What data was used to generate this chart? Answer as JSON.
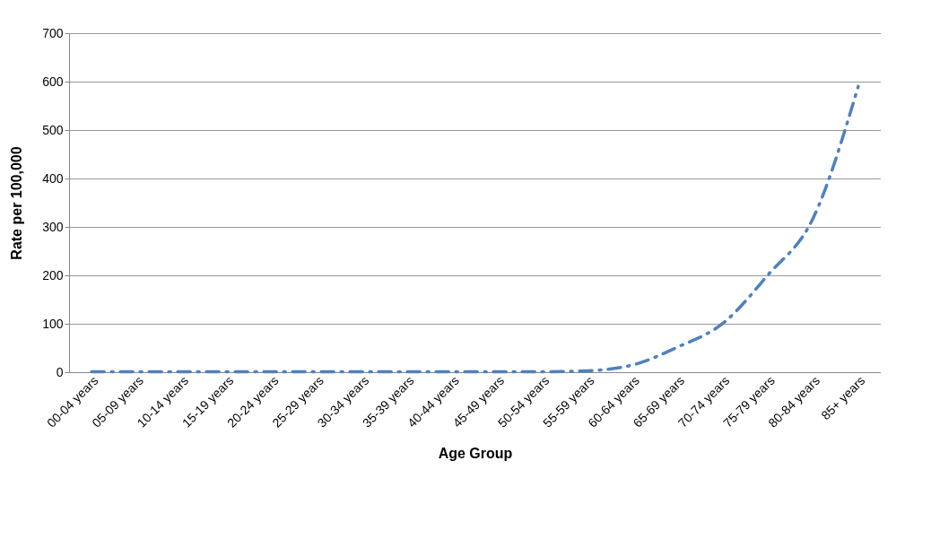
{
  "chart_data": {
    "type": "line",
    "xlabel": "Age Group",
    "ylabel": "Rate per 100,000",
    "categories": [
      "00-04 years",
      "05-09 years",
      "10-14 years",
      "15-19 years",
      "20-24 years",
      "25-29 years",
      "30-34 years",
      "35-39 years",
      "40-44 years",
      "45-49 years",
      "50-54 years",
      "55-59 years",
      "60-64 years",
      "65-69 years",
      "70-74 years",
      "75-79 years",
      "80-84 years",
      "85+ years"
    ],
    "series": [
      {
        "color": "#4f81bd",
        "values": [
          1,
          1,
          1,
          1,
          1,
          1,
          1,
          1,
          1,
          1,
          1,
          3,
          15,
          52,
          101,
          201,
          318,
          590
        ]
      }
    ],
    "ylim": [
      0,
      700
    ],
    "yticks": [
      0,
      100,
      200,
      300,
      400,
      500,
      600,
      700
    ],
    "grid": "y",
    "line_style": "dashdot"
  }
}
